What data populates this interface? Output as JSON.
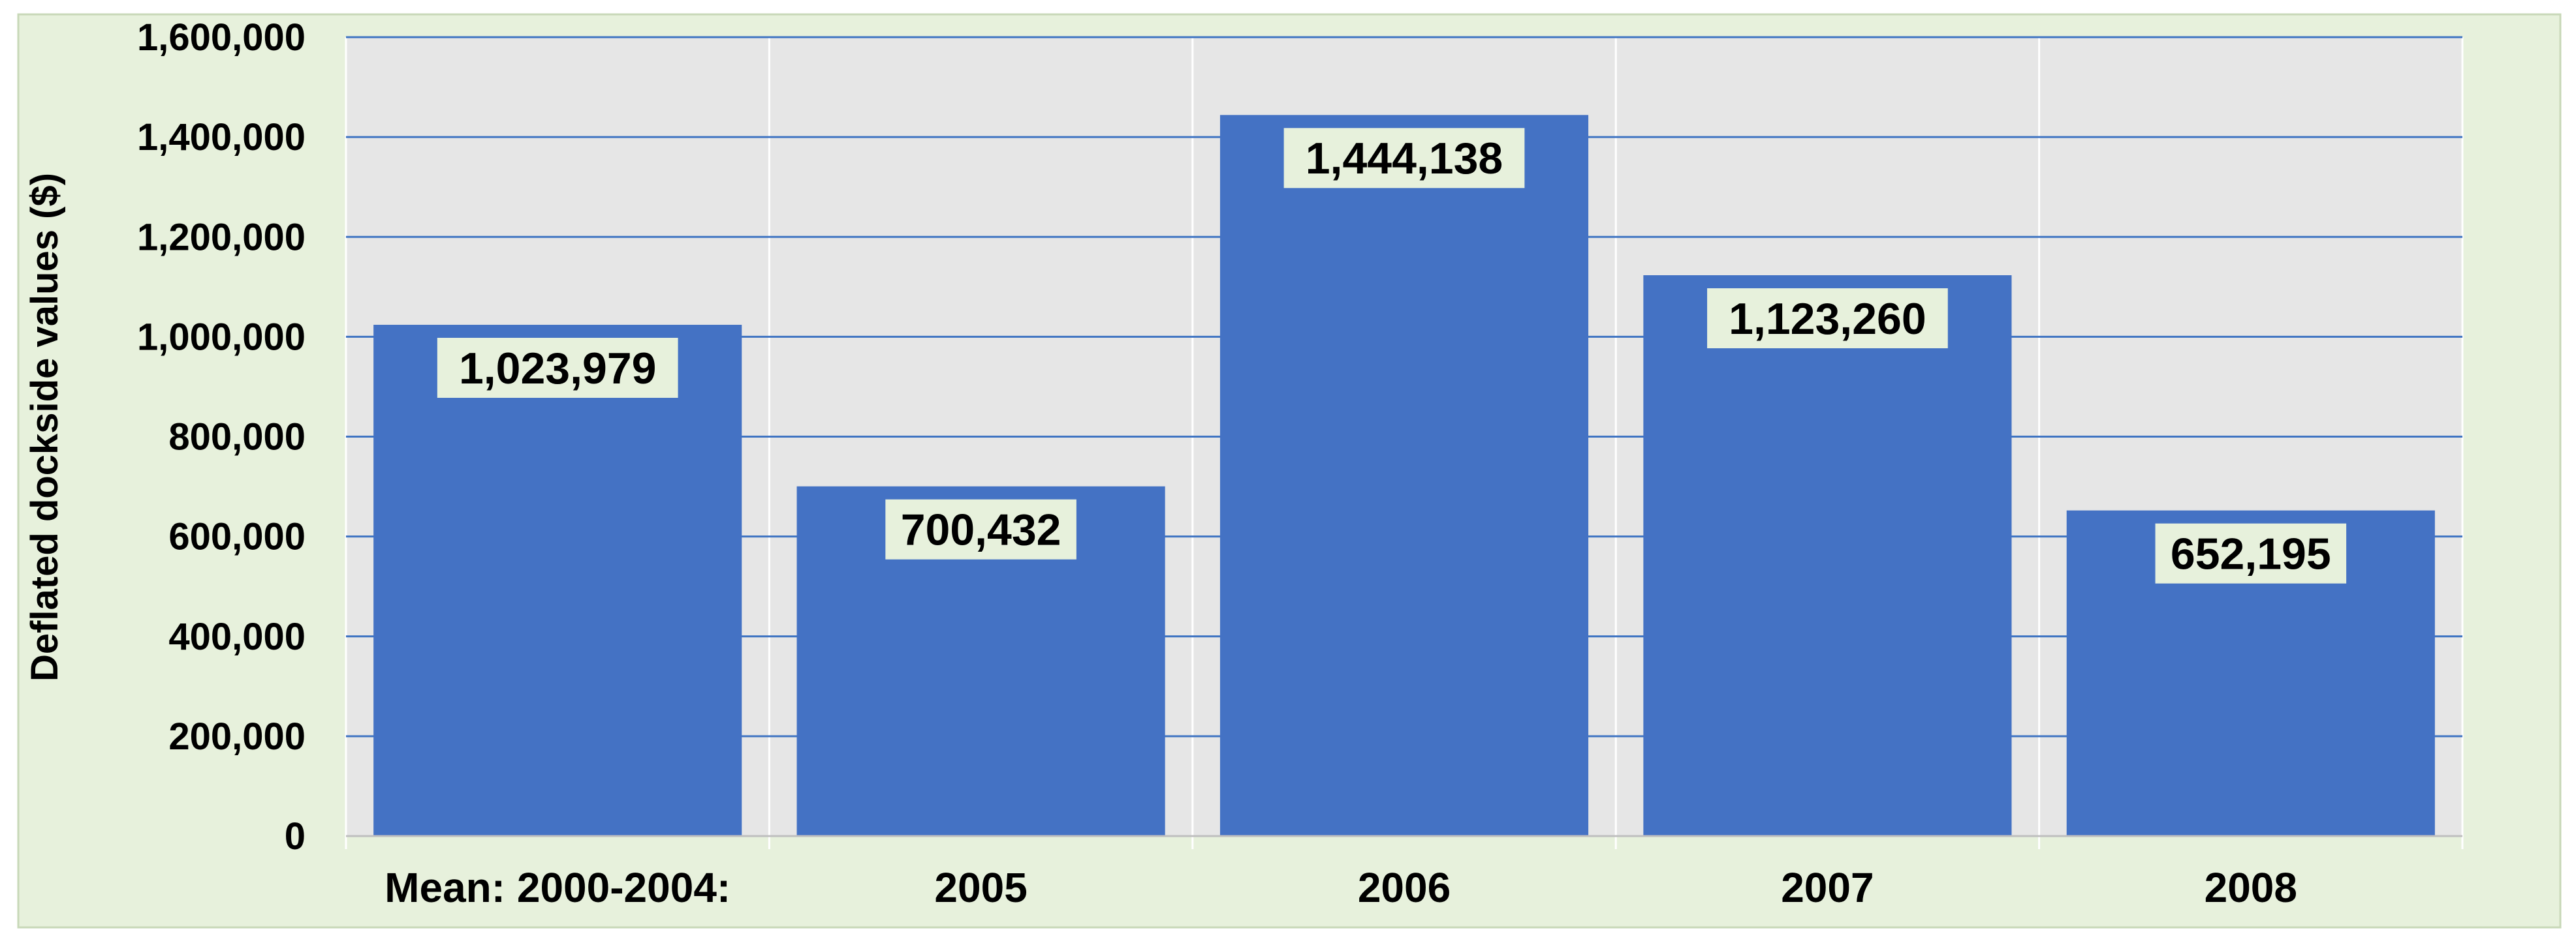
{
  "chart_data": {
    "type": "bar",
    "title": "",
    "xlabel": "",
    "ylabel": "Deflated dockside values ($)",
    "categories": [
      "Mean: 2000-2004:",
      "2005",
      "2006",
      "2007",
      "2008"
    ],
    "values": [
      1023979,
      700432,
      1444138,
      1123260,
      652195
    ],
    "data_labels": [
      "1,023,979",
      "700,432",
      "1,444,138",
      "1,123,260",
      "652,195"
    ],
    "ylim": [
      0,
      1600000
    ],
    "yticks": [
      0,
      200000,
      400000,
      600000,
      800000,
      1000000,
      1200000,
      1400000,
      1600000
    ],
    "ytick_labels": [
      "0",
      "200,000",
      "400,000",
      "600,000",
      "800,000",
      "1,000,000",
      "1,200,000",
      "1,400,000",
      "1,600,000"
    ],
    "grid": true,
    "legend": "none",
    "colors": {
      "bar": "#4472C4",
      "outer_background": "#E7F1DC",
      "plot_background": "#E6E6E6",
      "gridline": "#3F74C2",
      "label_box": "#E7F1DC"
    }
  }
}
